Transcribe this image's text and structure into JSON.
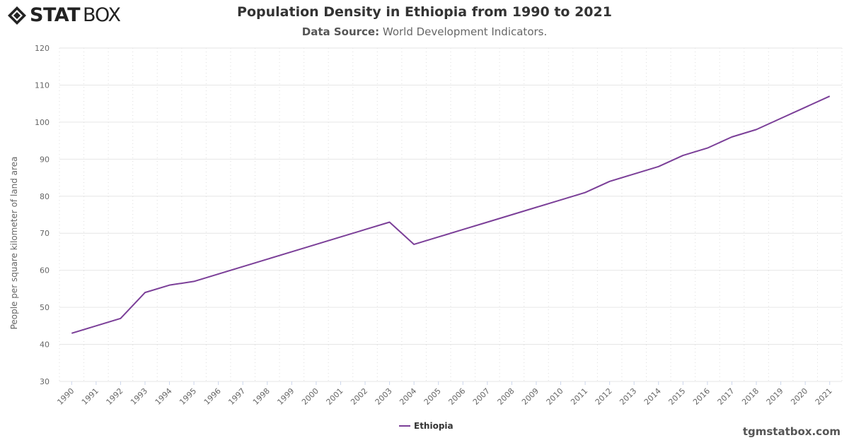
{
  "brand": {
    "logo_text_bold": "STAT",
    "logo_text_light": "BOX",
    "watermark": "tgmstatbox.com"
  },
  "header": {
    "title": "Population Density in Ethiopia from 1990 to 2021",
    "subtitle_label": "Data Source:",
    "subtitle_value": "World Development Indicators."
  },
  "chart_data": {
    "type": "line",
    "title": "Population Density in Ethiopia from 1990 to 2021",
    "xlabel": "",
    "ylabel": "People per square kilometer of land area",
    "ylim": [
      30,
      120
    ],
    "yticks": [
      30,
      40,
      50,
      60,
      70,
      80,
      90,
      100,
      110,
      120
    ],
    "grid": true,
    "legend": "bottom-center",
    "categories": [
      "1990",
      "1991",
      "1992",
      "1993",
      "1994",
      "1995",
      "1996",
      "1997",
      "1998",
      "1999",
      "2000",
      "2001",
      "2002",
      "2003",
      "2004",
      "2005",
      "2006",
      "2007",
      "2008",
      "2009",
      "2010",
      "2011",
      "2012",
      "2013",
      "2014",
      "2015",
      "2016",
      "2017",
      "2018",
      "2019",
      "2020",
      "2021"
    ],
    "series": [
      {
        "name": "Ethiopia",
        "color": "#7b3f98",
        "values": [
          43,
          45,
          47,
          54,
          56,
          57,
          59,
          61,
          63,
          65,
          67,
          69,
          71,
          73,
          67,
          69,
          71,
          73,
          75,
          77,
          79,
          81,
          84,
          86,
          88,
          91,
          93,
          96,
          98,
          101,
          104,
          107
        ]
      }
    ]
  }
}
